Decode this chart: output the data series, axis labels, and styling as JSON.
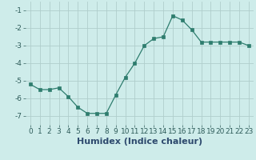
{
  "x": [
    0,
    1,
    2,
    3,
    4,
    5,
    6,
    7,
    8,
    9,
    10,
    11,
    12,
    13,
    14,
    15,
    16,
    17,
    18,
    19,
    20,
    21,
    22,
    23
  ],
  "y": [
    -5.2,
    -5.5,
    -5.5,
    -5.4,
    -5.9,
    -6.5,
    -6.85,
    -6.85,
    -6.85,
    -5.8,
    -4.8,
    -4.0,
    -3.0,
    -2.6,
    -2.5,
    -1.3,
    -1.55,
    -2.1,
    -2.8,
    -2.8,
    -2.8,
    -2.8,
    -2.8,
    -3.0
  ],
  "line_color": "#2e7d6e",
  "marker": "s",
  "marker_size": 2.5,
  "bg_color": "#ceecea",
  "grid_color": "#b0cecc",
  "xlabel": "Humidex (Indice chaleur)",
  "ylim": [
    -7.5,
    -0.5
  ],
  "xlim": [
    -0.5,
    23.5
  ],
  "yticks": [
    -7,
    -6,
    -5,
    -4,
    -3,
    -2,
    -1
  ],
  "xticks": [
    0,
    1,
    2,
    3,
    4,
    5,
    6,
    7,
    8,
    9,
    10,
    11,
    12,
    13,
    14,
    15,
    16,
    17,
    18,
    19,
    20,
    21,
    22,
    23
  ],
  "tick_fontsize": 6.5,
  "xlabel_fontsize": 8
}
